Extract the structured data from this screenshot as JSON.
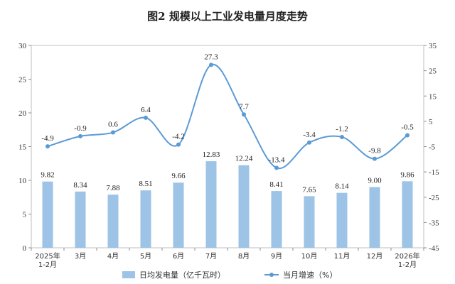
{
  "chart_data": {
    "type": "bar+line",
    "title": "图2 规模以上工业发电量月度走势",
    "categories": [
      [
        "2025年",
        "1-2月"
      ],
      [
        "3月"
      ],
      [
        "4月"
      ],
      [
        "5月"
      ],
      [
        "6月"
      ],
      [
        "7月"
      ],
      [
        "8月"
      ],
      [
        "9月"
      ],
      [
        "10月"
      ],
      [
        "11月"
      ],
      [
        "12月"
      ],
      [
        "2026年",
        "1-2月"
      ]
    ],
    "series": [
      {
        "name": "日均发电量（亿千瓦时）",
        "type": "bar",
        "axis": "left",
        "color": "#9dc3e6",
        "values": [
          9.82,
          8.34,
          7.88,
          8.51,
          9.66,
          12.83,
          12.24,
          8.41,
          7.65,
          8.14,
          9.0,
          9.86
        ],
        "labels": [
          "9.82",
          "8.34",
          "7.88",
          "8.51",
          "9.66",
          "12.83",
          "12.24",
          "8.41",
          "7.65",
          "8.14",
          "9.00",
          "9.86"
        ]
      },
      {
        "name": "当月增速（%）",
        "type": "line",
        "axis": "right",
        "color": "#5b9bd5",
        "values": [
          -4.9,
          -0.9,
          0.6,
          6.4,
          -4.2,
          27.3,
          7.7,
          -13.4,
          -3.4,
          -1.2,
          -9.8,
          -0.5
        ],
        "labels": [
          "-4.9",
          "-0.9",
          "0.6",
          "6.4",
          "-4.2",
          "27.3",
          "7.7",
          "-13.4",
          "-3.4",
          "-1.2",
          "-9.8",
          "-0.5"
        ]
      }
    ],
    "y_left": {
      "min": 0,
      "max": 30,
      "ticks": [
        "0",
        "5",
        "10",
        "15",
        "20",
        "25",
        "30"
      ]
    },
    "y_right": {
      "min": -45,
      "max": 35,
      "ticks": [
        "-45",
        "-35",
        "-25",
        "-15",
        "-5",
        "5",
        "15",
        "25",
        "35"
      ]
    },
    "grid": false,
    "legend": "bottom"
  }
}
